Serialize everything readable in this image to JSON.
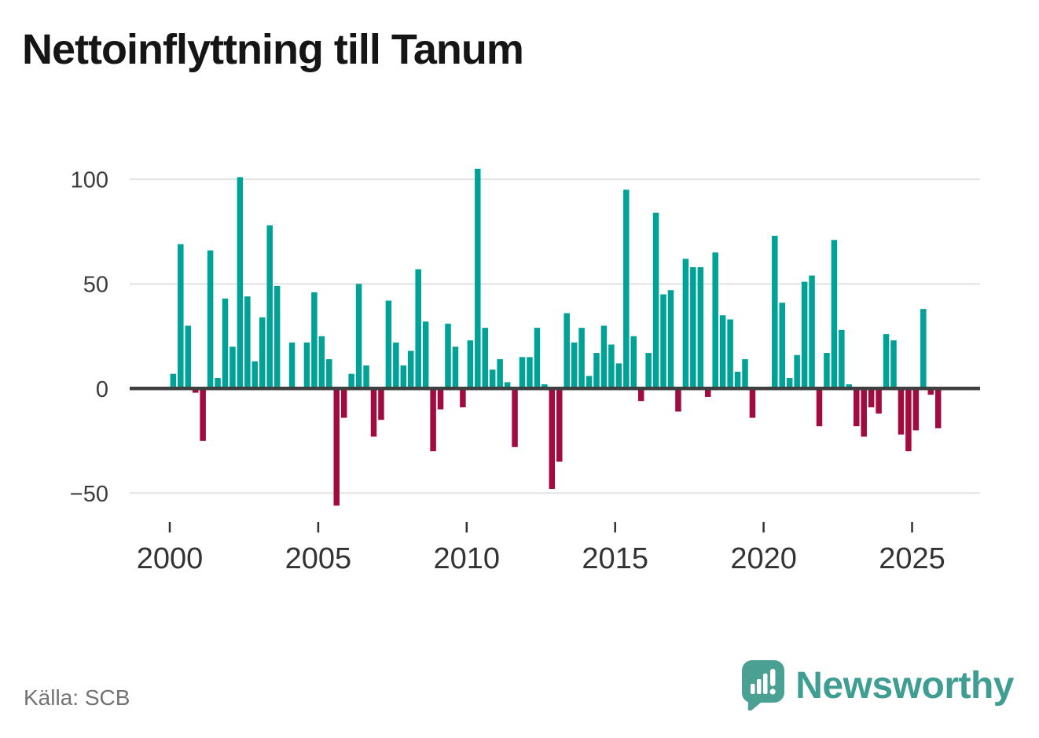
{
  "title": "Nettoinflyttning till Tanum",
  "source": {
    "label": "Källa: SCB"
  },
  "branding": {
    "name": "Newsworthy",
    "icon": "newsworthy-logo-icon",
    "color": "#3f9d92"
  },
  "chart_data": {
    "type": "bar",
    "title": "Nettoinflyttning till Tanum",
    "xlabel": "",
    "ylabel": "",
    "x_unit": "quarter",
    "ylim": [
      -60,
      110
    ],
    "grid": "horizontal",
    "legend": "none",
    "y_ticks": [
      100,
      50,
      0,
      -50
    ],
    "y_tick_labels": [
      "100",
      "50",
      "0",
      "−50"
    ],
    "x_tick_years": [
      2000,
      2005,
      2010,
      2015,
      2020,
      2025
    ],
    "x_tick_labels": [
      "2000",
      "2005",
      "2010",
      "2015",
      "2020",
      "2025"
    ],
    "positive_color": "#00a298",
    "negative_color": "#a20b3e",
    "start_year": 2000,
    "quarters_per_year": 4,
    "years": [
      {
        "year": 2000,
        "values": [
          7,
          69,
          30,
          -2
        ]
      },
      {
        "year": 2001,
        "values": [
          -25,
          66,
          5,
          43
        ]
      },
      {
        "year": 2002,
        "values": [
          20,
          101,
          44,
          13
        ]
      },
      {
        "year": 2003,
        "values": [
          34,
          78,
          49,
          0
        ]
      },
      {
        "year": 2004,
        "values": [
          22,
          0,
          22,
          46
        ]
      },
      {
        "year": 2005,
        "values": [
          25,
          14,
          -56,
          -14
        ]
      },
      {
        "year": 2006,
        "values": [
          7,
          50,
          11,
          -23
        ]
      },
      {
        "year": 2007,
        "values": [
          -15,
          42,
          22,
          11
        ]
      },
      {
        "year": 2008,
        "values": [
          18,
          57,
          32,
          -30
        ]
      },
      {
        "year": 2009,
        "values": [
          -10,
          31,
          20,
          -9
        ]
      },
      {
        "year": 2010,
        "values": [
          23,
          105,
          29,
          9
        ]
      },
      {
        "year": 2011,
        "values": [
          14,
          3,
          -28,
          15
        ]
      },
      {
        "year": 2012,
        "values": [
          15,
          29,
          2,
          -48
        ]
      },
      {
        "year": 2013,
        "values": [
          -35,
          36,
          22,
          29
        ]
      },
      {
        "year": 2014,
        "values": [
          6,
          17,
          30,
          21
        ]
      },
      {
        "year": 2015,
        "values": [
          12,
          95,
          25,
          -6
        ]
      },
      {
        "year": 2016,
        "values": [
          17,
          84,
          45,
          47
        ]
      },
      {
        "year": 2017,
        "values": [
          -11,
          62,
          58,
          58
        ]
      },
      {
        "year": 2018,
        "values": [
          -4,
          65,
          35,
          33
        ]
      },
      {
        "year": 2019,
        "values": [
          8,
          14,
          -14,
          0
        ]
      },
      {
        "year": 2020,
        "values": [
          0,
          73,
          41,
          5
        ]
      },
      {
        "year": 2021,
        "values": [
          16,
          51,
          54,
          -18
        ]
      },
      {
        "year": 2022,
        "values": [
          17,
          71,
          28,
          2
        ]
      },
      {
        "year": 2023,
        "values": [
          -18,
          -23,
          -9,
          -12
        ]
      },
      {
        "year": 2024,
        "values": [
          26,
          23,
          -22,
          -30
        ]
      },
      {
        "year": 2025,
        "values": [
          -20,
          38,
          -3,
          -19
        ]
      }
    ]
  }
}
